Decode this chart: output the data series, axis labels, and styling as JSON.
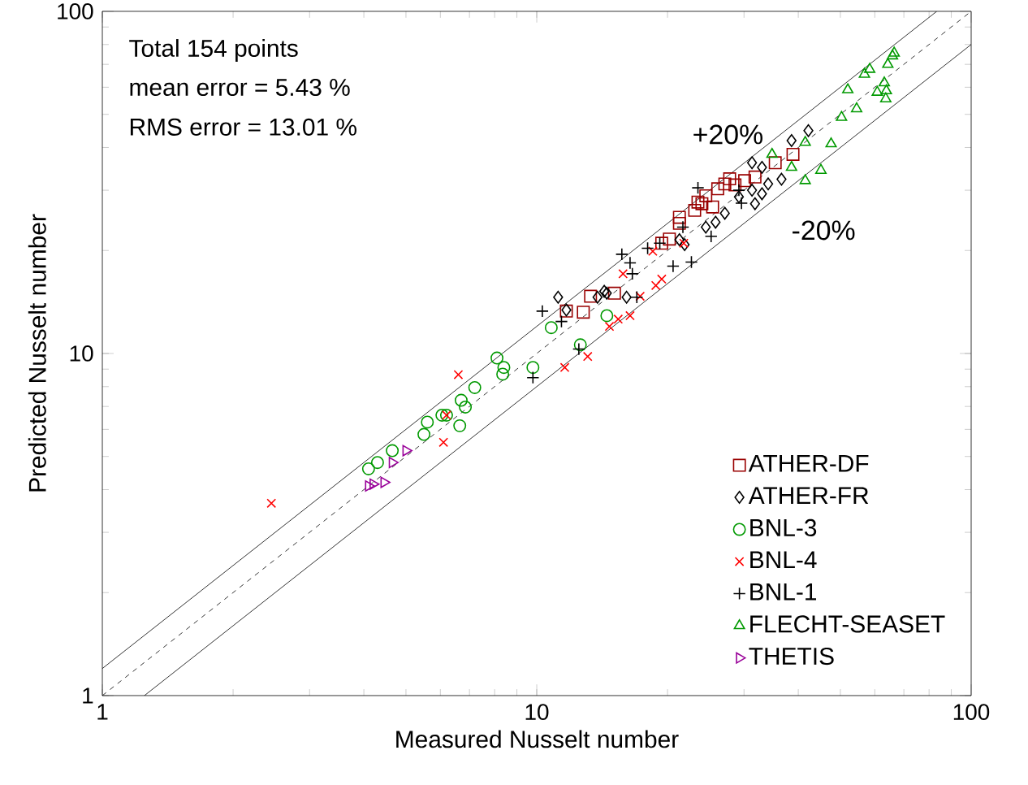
{
  "chart_data": {
    "type": "scatter",
    "xlabel": "Measured Nusselt number",
    "ylabel": "Predicted Nusselt number",
    "log": "xy",
    "xlim": [
      1,
      100
    ],
    "ylim": [
      1,
      100
    ],
    "xticks": [
      1,
      10,
      100
    ],
    "yticks": [
      1,
      10,
      100
    ],
    "grid": false,
    "legend": "bottom right",
    "annotations": [
      "Total 154 points",
      "mean error = 5.43 %",
      "RMS error = 13.01 %",
      "+20%",
      "-20%"
    ],
    "series": [
      {
        "name": "ATHER-DF",
        "color": "#990000",
        "marker": "square",
        "x": [
          11.7,
          12.8,
          13.3,
          15.1,
          19.4,
          20.2,
          21.3,
          21.3,
          23.1,
          23.5,
          24.0,
          24.5,
          26.1,
          27.1,
          27.8,
          28.6,
          30.1,
          31.8,
          35.4,
          38.9,
          25.4
        ],
        "values": [
          13.3,
          13.2,
          14.7,
          15.0,
          21.0,
          21.6,
          24.0,
          25.0,
          26.2,
          27.7,
          27.4,
          28.9,
          30.3,
          31.3,
          32.4,
          31.1,
          32.0,
          32.8,
          36.1,
          38.2,
          26.8
        ]
      },
      {
        "name": "ATHER-FR",
        "color": "#000000",
        "marker": "diamond",
        "x": [
          11.2,
          11.7,
          13.8,
          14.3,
          14.5,
          16.1,
          21.3,
          21.9,
          24.5,
          25.8,
          27.1,
          29.2,
          31.3,
          31.8,
          33.0,
          34.1,
          31.3,
          33.0,
          36.6,
          38.6,
          42.2
        ],
        "values": [
          14.6,
          13.4,
          14.6,
          15.2,
          15.0,
          14.6,
          21.5,
          20.8,
          23.4,
          24.2,
          25.7,
          28.7,
          30.0,
          27.4,
          29.3,
          31.3,
          36.1,
          35.0,
          32.3,
          41.9,
          44.8
        ]
      },
      {
        "name": "BNL-3",
        "color": "#009900",
        "marker": "circle",
        "x": [
          4.1,
          4.3,
          4.65,
          5.5,
          5.6,
          6.05,
          6.2,
          6.65,
          6.7,
          6.85,
          7.2,
          8.1,
          8.35,
          8.4,
          9.8,
          10.8,
          12.6,
          14.5
        ],
        "values": [
          4.6,
          4.8,
          5.2,
          5.8,
          6.3,
          6.6,
          6.6,
          6.15,
          7.3,
          6.97,
          7.95,
          9.7,
          8.7,
          9.1,
          9.1,
          11.9,
          10.6,
          12.9
        ]
      },
      {
        "name": "BNL-4",
        "color": "#ff0000",
        "marker": "cross",
        "x": [
          2.45,
          6.6,
          6.1,
          6.2,
          11.6,
          13.1,
          14.7,
          15.4,
          16.4,
          15.8,
          17.3,
          18.8,
          19.4,
          18.5,
          21.8
        ],
        "values": [
          3.65,
          8.67,
          5.5,
          6.6,
          9.1,
          9.8,
          12.0,
          12.6,
          12.9,
          17.1,
          14.7,
          15.8,
          16.5,
          19.9,
          21.0
        ]
      },
      {
        "name": "BNL-1",
        "color": "#000000",
        "marker": "plus",
        "x": [
          10.3,
          11.4,
          9.8,
          12.5,
          15.7,
          16.4,
          16.6,
          17.0,
          18.0,
          19.2,
          20.6,
          22.7,
          21.7,
          23.5,
          25.2,
          29.2,
          29.6
        ],
        "values": [
          13.3,
          12.4,
          8.5,
          10.3,
          19.5,
          18.4,
          17.1,
          14.6,
          20.3,
          21.0,
          18.0,
          18.5,
          23.4,
          30.5,
          22.0,
          30.0,
          27.5
        ]
      },
      {
        "name": "FLECHT-SEASET",
        "color": "#009900",
        "marker": "triangle",
        "x": [
          34.8,
          38.6,
          41.5,
          41.5,
          45.1,
          47.6,
          50.3,
          54.5,
          52.0,
          56.8,
          58.4,
          60.8,
          63.1,
          63.6,
          64.3,
          65.9,
          66.5,
          63.8
        ],
        "values": [
          38.2,
          35.0,
          41.4,
          32.0,
          34.3,
          41.0,
          49.0,
          51.9,
          59.0,
          65.5,
          67.7,
          58.0,
          61.8,
          55.5,
          70.0,
          74.1,
          75.5,
          58.6
        ]
      },
      {
        "name": "THETIS",
        "color": "#990099",
        "marker": "triangle-right",
        "x": [
          4.1,
          4.2,
          4.45,
          4.65,
          5.0
        ],
        "values": [
          4.1,
          4.15,
          4.2,
          4.8,
          5.2
        ]
      },
      {
        "type": "line",
        "color": "#000000",
        "line_style": "solid",
        "marker": "none",
        "x": [
          1,
          83.33
        ],
        "values": [
          1.2,
          100
        ]
      },
      {
        "type": "line",
        "color": "#000000",
        "line_style": "dashed",
        "marker": "none",
        "x": [
          1,
          100
        ],
        "values": [
          1,
          100
        ]
      },
      {
        "type": "line",
        "color": "#000000",
        "line_style": "solid",
        "marker": "none",
        "x": [
          1.25,
          100
        ],
        "values": [
          1,
          80
        ]
      }
    ]
  }
}
